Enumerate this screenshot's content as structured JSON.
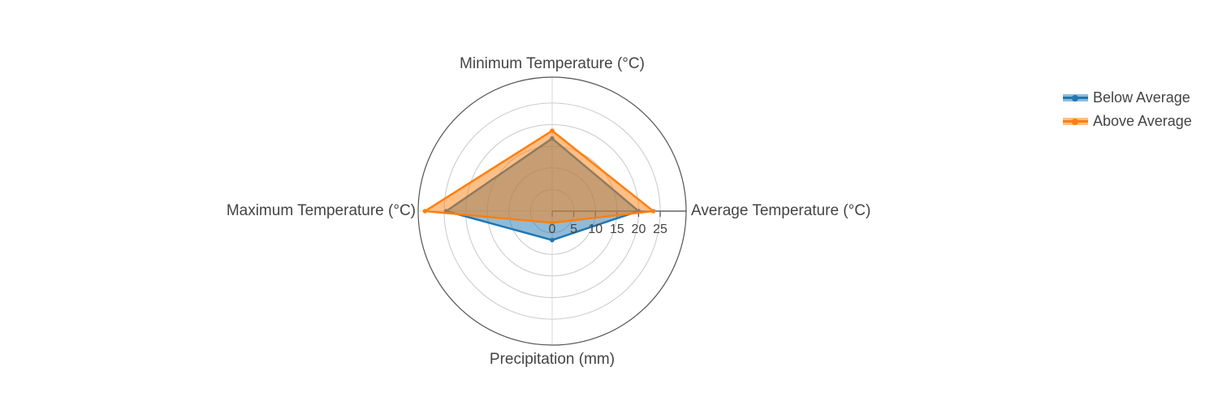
{
  "chart_data": {
    "type": "radar",
    "categories": [
      "Minimum Temperature (°C)",
      "Average Temperature (°C)",
      "Precipitation (mm)",
      "Maximum Temperature (°C)"
    ],
    "axes": [
      {
        "label": "Minimum Temperature (°C)",
        "angle_deg": 90
      },
      {
        "label": "Average Temperature (°C)",
        "angle_deg": 0
      },
      {
        "label": "Precipitation (mm)",
        "angle_deg": 270
      },
      {
        "label": "Maximum Temperature (°C)",
        "angle_deg": 180
      }
    ],
    "series": [
      {
        "name": "Below Average",
        "color": "#1f77b4",
        "values": [
          16.8,
          20,
          6.7,
          24.5
        ]
      },
      {
        "name": "Above Average",
        "color": "#ff7f0e",
        "values": [
          18.6,
          23.4,
          2.7,
          29.4
        ]
      }
    ],
    "radial_ticks": [
      0,
      5,
      10,
      15,
      20,
      25
    ],
    "radial_range": [
      0,
      31
    ],
    "grid": true,
    "legend_position": "top-right",
    "fill_opacity": 0.5,
    "colors": {
      "text": "#444444",
      "ring_grid": "#c9c9c9",
      "angular_grid": "#d9d9d9",
      "outer_circle": "#545454",
      "radial_axis": "#444444"
    }
  }
}
